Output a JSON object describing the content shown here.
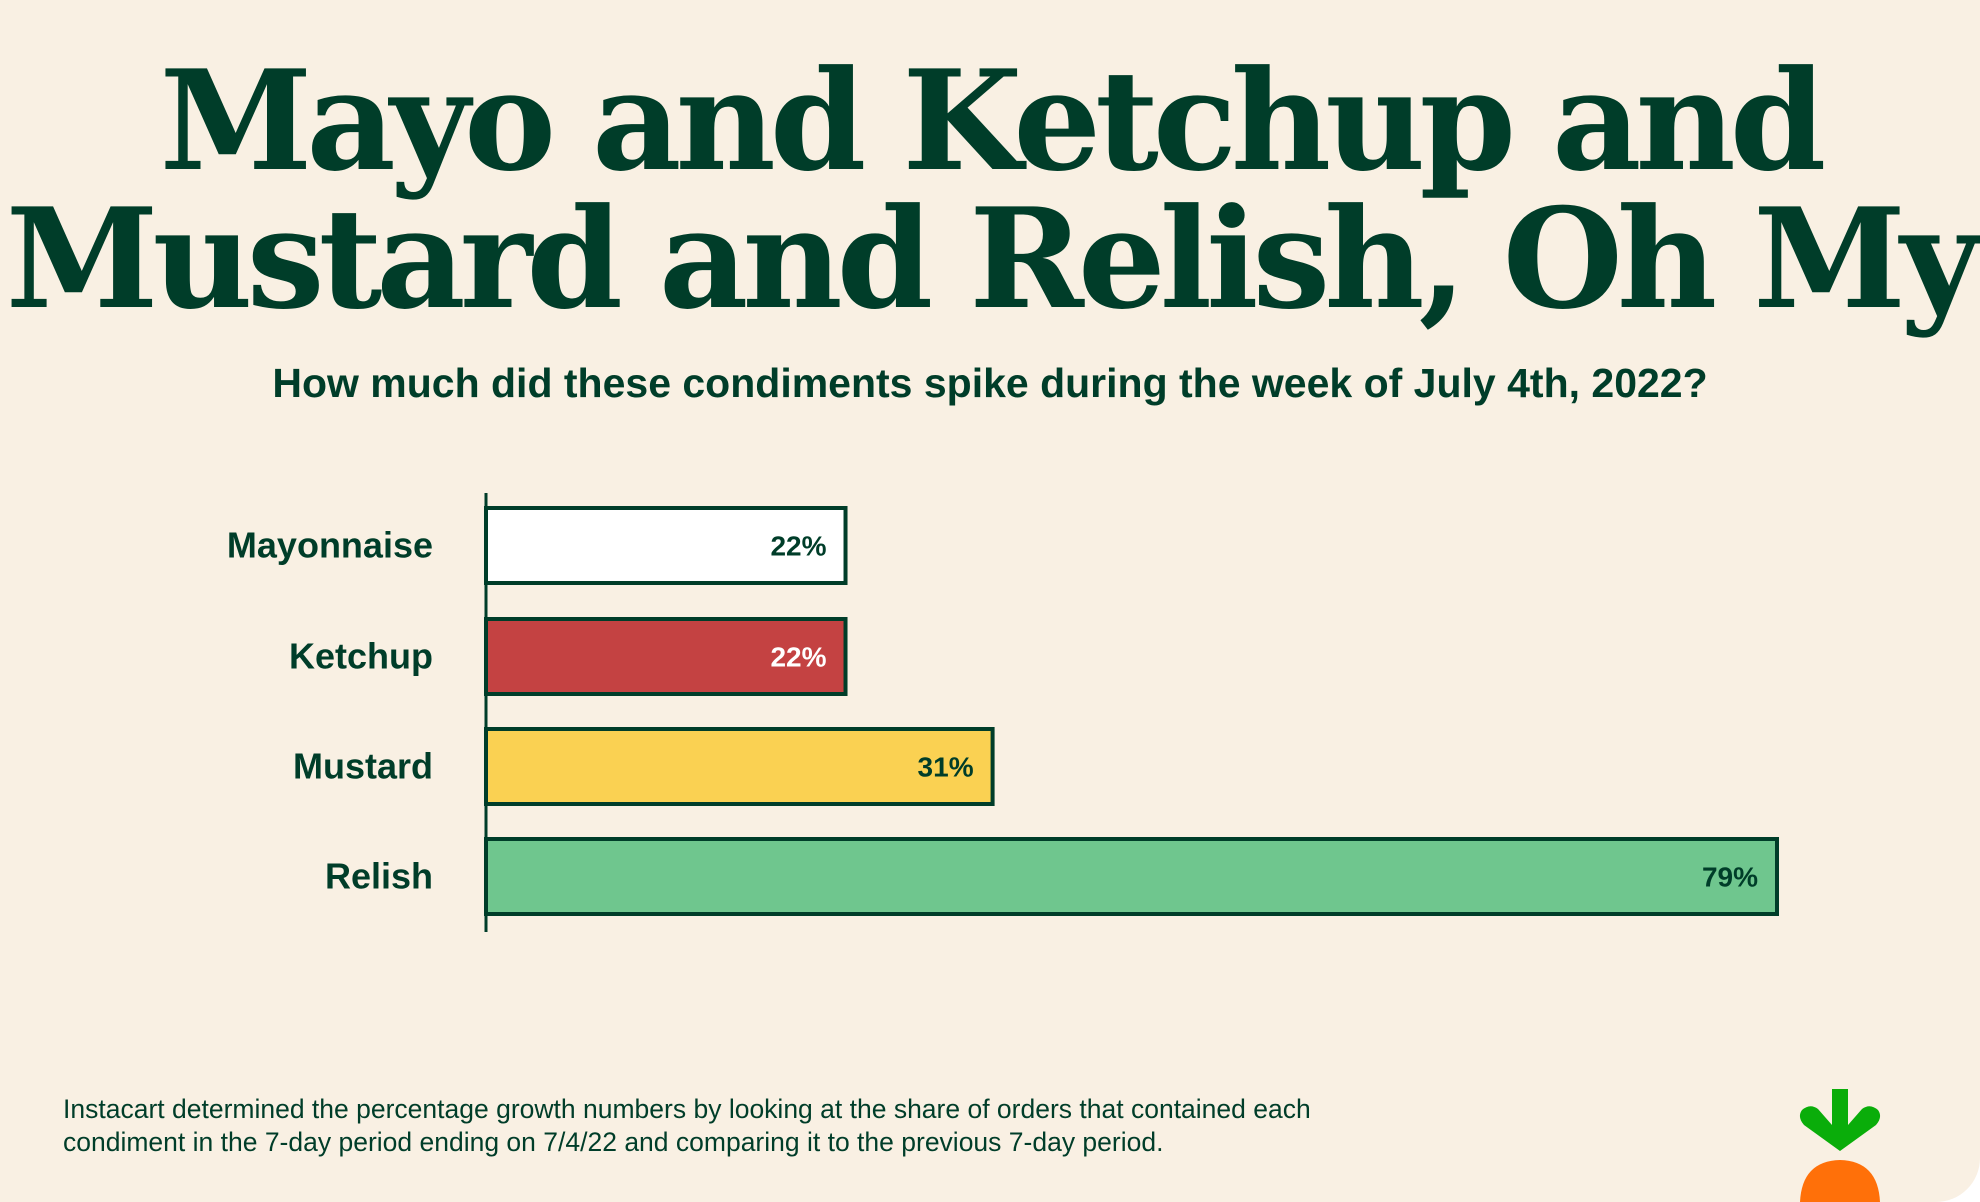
{
  "title_lines": [
    "Mayo and Ketchup and",
    "Mustard and Relish, Oh My"
  ],
  "subtitle": "How much did these condiments spike during the week of July 4th, 2022?",
  "footnote_lines": [
    "Instacart determined the percentage growth numbers by looking at the share of orders that contained each",
    "condiment in the 7-day period ending on 7/4/22 and comparing it to the previous 7-day period."
  ],
  "colors": {
    "background": "#f9f0e3",
    "text": "#003d29",
    "logo_leaf": "#0aad0a",
    "logo_carrot": "#ff7009"
  },
  "logo": "instacart-carrot-logo",
  "chart_data": {
    "type": "bar",
    "orientation": "horizontal",
    "title": "How much did these condiments spike during the week of July 4th, 2022?",
    "categories": [
      "Mayonnaise",
      "Ketchup",
      "Mustard",
      "Relish"
    ],
    "values": [
      22,
      22,
      31,
      79
    ],
    "data_labels": [
      "22%",
      "22%",
      "31%",
      "79%"
    ],
    "unit": "%",
    "bar_colors": [
      "#ffffff",
      "#c44242",
      "#fad152",
      "#6fc68e"
    ],
    "label_colors": [
      "#003d29",
      "#ffffff",
      "#003d29",
      "#003d29"
    ],
    "xlim": [
      0,
      79
    ],
    "grid": false,
    "legend": "none"
  }
}
